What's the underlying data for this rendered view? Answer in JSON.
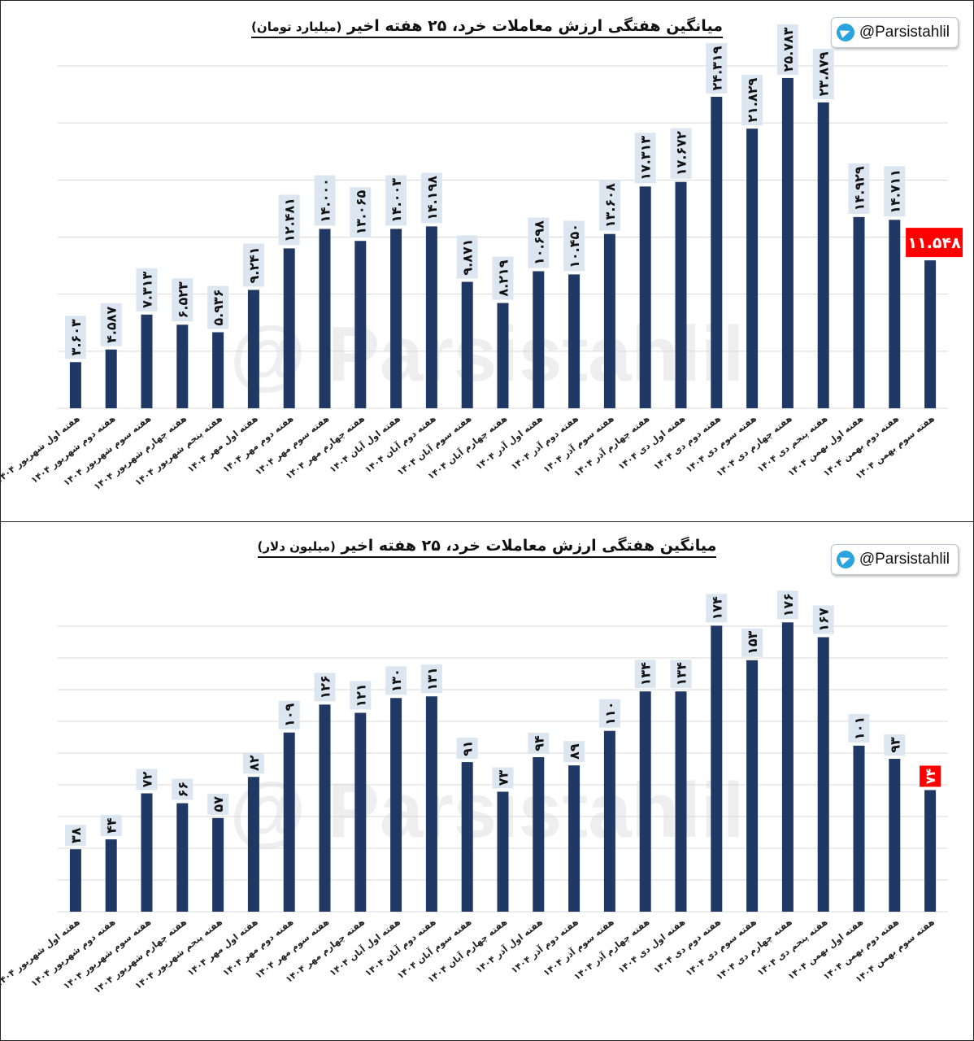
{
  "watermark": "@ Parsistahlil",
  "colors": {
    "bar": "#1f3864",
    "label_bg": "#dce6f1",
    "highlight": "#ff0000",
    "grid": "#d9d9d9"
  },
  "chart_data": [
    {
      "type": "bar",
      "title": "میانگین هفتگی ارزش معاملات خرد، ۲۵ هفته اخیر",
      "unit": "(میلیارد تومان)",
      "badge": "@Parsistahlil",
      "ylim": [
        0,
        28
      ],
      "categories": [
        "هفته اول شهریور ۱۴۰۴",
        "هفته دوم شهریور ۱۴۰۴",
        "هفته سوم شهریور ۱۴۰۴",
        "هفته چهارم شهریور ۱۴۰۴",
        "هفته پنجم شهریور ۱۴۰۴",
        "هفته اول مهر ۱۴۰۴",
        "هفته دوم مهر ۱۴۰۴",
        "هفته سوم مهر ۱۴۰۴",
        "هفته چهارم مهر ۱۴۰۴",
        "هفته اول آبان ۱۴۰۴",
        "هفته دوم آبان ۱۴۰۴",
        "هفته سوم آبان ۱۴۰۴",
        "هفته چهارم آبان ۱۴۰۴",
        "هفته اول آذر ۱۴۰۴",
        "هفته دوم آذر ۱۴۰۴",
        "هفته سوم آذر ۱۴۰۴",
        "هفته چهارم آذر ۱۴۰۴",
        "هفته اول دی ۱۴۰۴",
        "هفته دوم دی ۱۴۰۴",
        "هفته سوم دی ۱۴۰۴",
        "هفته چهارم دی ۱۴۰۴",
        "هفته پنجم دی ۱۴۰۴",
        "هفته اول بهمن ۱۴۰۴",
        "هفته دوم بهمن ۱۴۰۴",
        "هفته سوم بهمن ۱۴۰۴"
      ],
      "values": [
        3.603,
        4.587,
        7.313,
        6.523,
        5.936,
        9.241,
        12.481,
        14.0,
        13.065,
        14.003,
        14.198,
        9.871,
        8.219,
        10.698,
        10.45,
        13.608,
        17.313,
        17.672,
        24.319,
        21.829,
        25.783,
        23.879,
        14.929,
        14.711,
        11.548
      ],
      "labels": [
        "۳.۶۰۳",
        "۴.۵۸۷",
        "۷.۳۱۳",
        "۶.۵۲۳",
        "۵.۹۳۶",
        "۹.۲۴۱",
        "۱۲.۴۸۱",
        "۱۴.۰۰۰",
        "۱۳.۰۶۵",
        "۱۴.۰۰۳",
        "۱۴.۱۹۸",
        "۹.۸۷۱",
        "۸.۲۱۹",
        "۱۰.۶۹۸",
        "۱۰.۴۵۰",
        "۱۳.۶۰۸",
        "۱۷.۳۱۳",
        "۱۷.۶۷۲",
        "۲۴.۳۱۹",
        "۲۱.۸۲۹",
        "۲۵.۷۸۳",
        "۲۳.۸۷۹",
        "۱۴.۹۲۹",
        "۱۴.۷۱۱",
        "۱۱.۵۴۸"
      ]
    },
    {
      "type": "bar",
      "title": "میانگین هفتگی ارزش معاملات خرد، ۲۵ هفته اخیر",
      "unit": "(میلیون دلار)",
      "badge": "@Parsistahlil",
      "ylim": [
        0,
        190
      ],
      "categories": [
        "هفته اول شهریور ۱۴۰۴",
        "هفته دوم شهریور ۱۴۰۴",
        "هفته سوم شهریور ۱۴۰۴",
        "هفته چهارم شهریور ۱۴۰۴",
        "هفته پنجم شهریور ۱۴۰۴",
        "هفته اول مهر ۱۴۰۴",
        "هفته دوم مهر ۱۴۰۴",
        "هفته سوم مهر ۱۴۰۴",
        "هفته چهارم مهر ۱۴۰۴",
        "هفته اول آبان ۱۴۰۴",
        "هفته دوم آبان ۱۴۰۴",
        "هفته سوم آبان ۱۴۰۴",
        "هفته چهارم آبان ۱۴۰۴",
        "هفته اول آذر ۱۴۰۴",
        "هفته دوم آذر ۱۴۰۴",
        "هفته سوم آذر ۱۴۰۴",
        "هفته چهارم آذر ۱۴۰۴",
        "هفته اول دی ۱۴۰۴",
        "هفته دوم دی ۱۴۰۴",
        "هفته سوم دی ۱۴۰۴",
        "هفته چهارم دی ۱۴۰۴",
        "هفته پنجم دی ۱۴۰۴",
        "هفته اول بهمن ۱۴۰۴",
        "هفته دوم بهمن ۱۴۰۴",
        "هفته سوم بهمن ۱۴۰۴"
      ],
      "values": [
        38,
        44,
        72,
        66,
        57,
        82,
        109,
        126,
        121,
        130,
        131,
        91,
        73,
        94,
        89,
        110,
        134,
        134,
        174,
        153,
        176,
        167,
        101,
        93,
        74
      ],
      "labels": [
        "۳۸",
        "۴۴",
        "۷۲",
        "۶۶",
        "۵۷",
        "۸۲",
        "۱۰۹",
        "۱۲۶",
        "۱۲۱",
        "۱۳۰",
        "۱۳۱",
        "۹۱",
        "۷۳",
        "۹۴",
        "۸۹",
        "۱۱۰",
        "۱۳۴",
        "۱۳۴",
        "۱۷۴",
        "۱۵۳",
        "۱۷۶",
        "۱۶۷",
        "۱۰۱",
        "۹۳",
        "۷۴"
      ]
    }
  ]
}
